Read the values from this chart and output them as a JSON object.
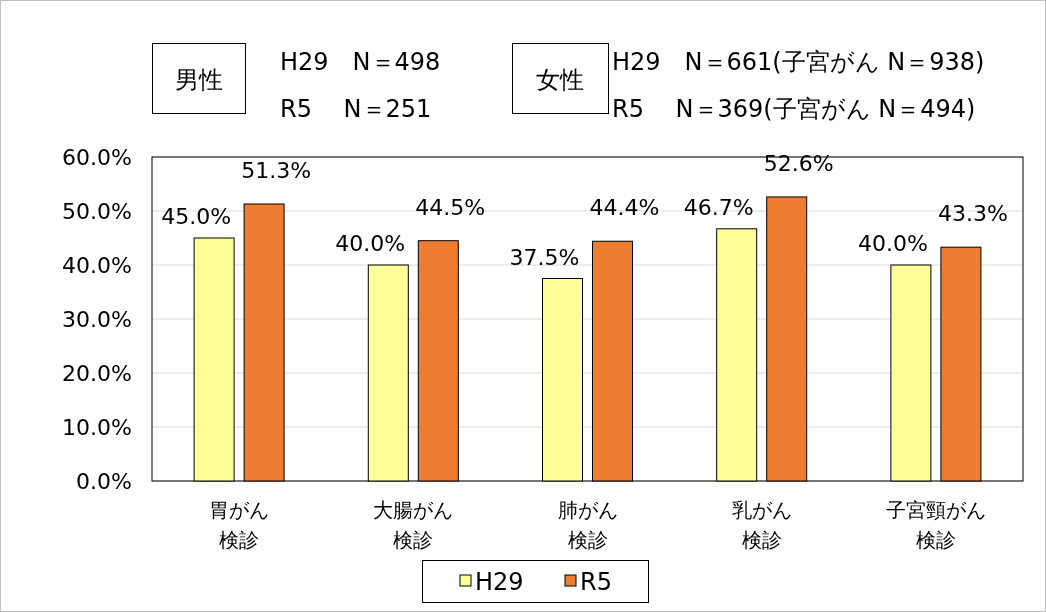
{
  "chart_data": {
    "type": "bar",
    "categories": [
      "胃がん検診",
      "大腸がん検診",
      "肺がん検診",
      "乳がん検診",
      "子宮頸がん検診"
    ],
    "series": [
      {
        "name": "H29",
        "color": "#ffff99",
        "values": [
          45.0,
          40.0,
          37.5,
          46.7,
          40.0
        ],
        "value_labels": [
          "45.0%",
          "40.0%",
          "37.5%",
          "46.7%",
          "40.0%"
        ]
      },
      {
        "name": "R5",
        "color": "#ed7d31",
        "values": [
          51.3,
          44.5,
          44.4,
          52.6,
          43.3
        ],
        "value_labels": [
          "51.3%",
          "44.5%",
          "44.4%",
          "52.6%",
          "43.3%"
        ]
      }
    ],
    "ylim": [
      0,
      60
    ],
    "yticks": [
      {
        "value": 0,
        "label": "0.0%"
      },
      {
        "value": 10,
        "label": "10.0%"
      },
      {
        "value": 20,
        "label": "20.0%"
      },
      {
        "value": 30,
        "label": "30.0%"
      },
      {
        "value": 40,
        "label": "40.0%"
      },
      {
        "value": 50,
        "label": "50.0%"
      },
      {
        "value": 60,
        "label": "60.0%"
      }
    ],
    "grid": "y",
    "legend": "bottom",
    "annotations": [
      "男性",
      "H29　N＝498",
      "R5　 N＝251",
      "女性",
      "H29　N＝661(子宮がん N＝938)",
      "R5　 N＝369(子宮がん N＝494)"
    ]
  }
}
